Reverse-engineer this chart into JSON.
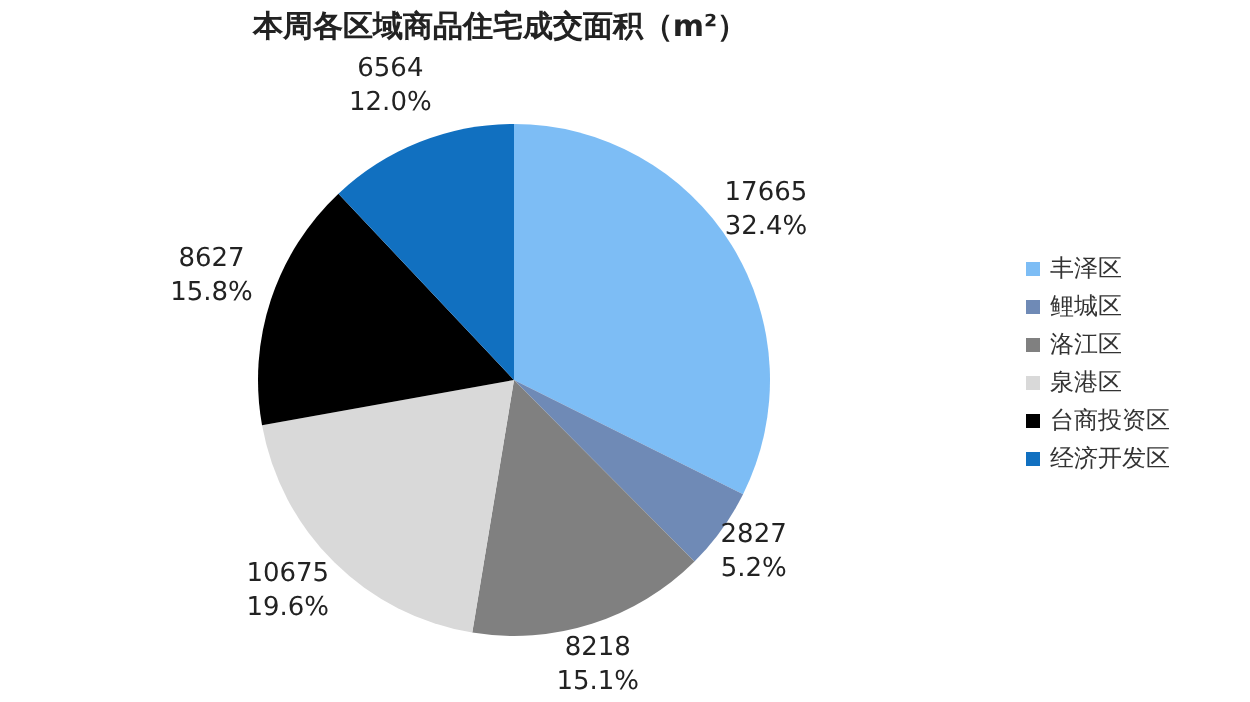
{
  "chart_data": {
    "type": "pie",
    "title": "本周各区域商品住宅成交面积（m²）",
    "categories": [
      "丰泽区",
      "鲤城区",
      "洛江区",
      "泉港区",
      "台商投资区",
      "经济开发区"
    ],
    "values": [
      17665,
      2827,
      8218,
      10675,
      8627,
      6564
    ],
    "colors": [
      "#7dbdf5",
      "#6f8ab6",
      "#808080",
      "#d9d9d9",
      "#000000",
      "#1170c0"
    ],
    "value_labels": [
      "17665\n32.4%",
      "2827\n5.2%",
      "8218\n15.1%",
      "10675\n19.6%",
      "8627\n15.8%",
      "6564\n12.0%"
    ],
    "legend": "right"
  }
}
